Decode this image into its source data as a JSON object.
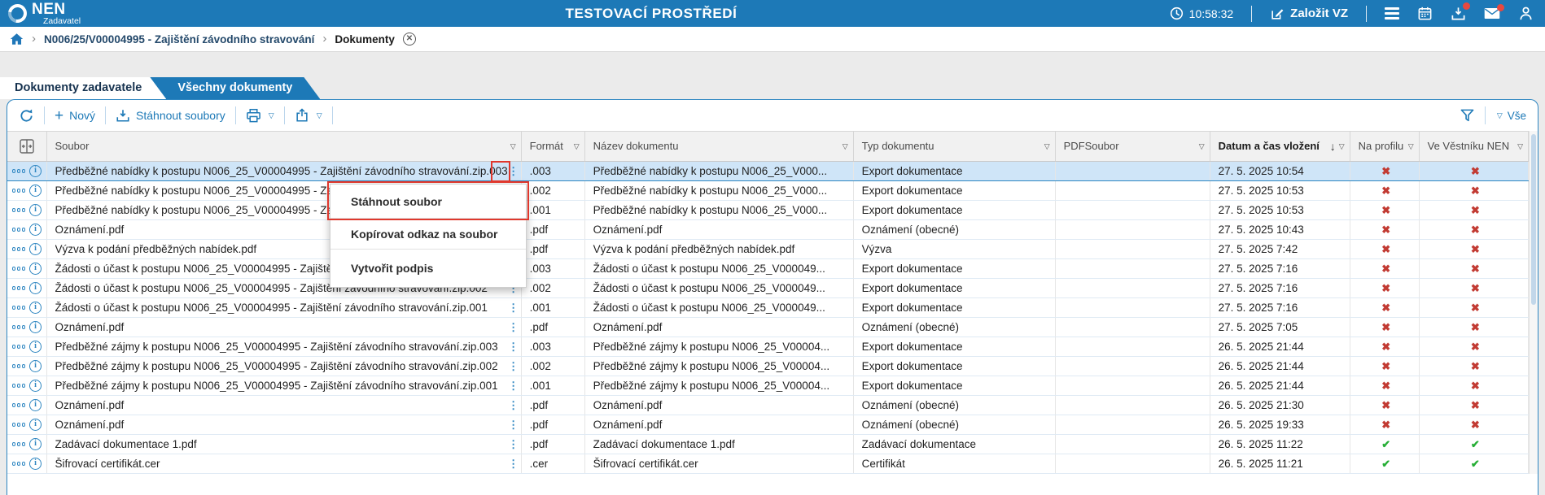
{
  "topbar": {
    "brand": "NEN",
    "brand_subtitle": "Zadavatel",
    "environment_title": "TESTOVACÍ PROSTŘEDÍ",
    "clock_time": "10:58:32",
    "create_vz_label": "Založit VZ",
    "notifications": {
      "downloads_badge": true,
      "mail_badge": true
    },
    "icon_names": [
      "clock-icon",
      "edit-icon",
      "hamburger-menu-icon",
      "calendar-icon",
      "download-tray-icon",
      "mail-icon",
      "user-icon"
    ]
  },
  "breadcrumb": {
    "items": [
      "N006/25/V00004995 - Zajištění závodního stravování",
      "Dokumenty"
    ],
    "icon_names": [
      "home-icon",
      "close-circle-icon"
    ]
  },
  "tabs": [
    {
      "label": "Dokumenty zadavatele",
      "active": false
    },
    {
      "label": "Všechny dokumenty",
      "active": true
    }
  ],
  "toolbar": {
    "new_label": "Nový",
    "download_files_label": "Stáhnout soubory",
    "all_label": "Vše",
    "icon_names": [
      "refresh-icon",
      "plus-icon",
      "download-icon",
      "printer-icon",
      "share-icon",
      "filter-funnel-icon",
      "dropdown-triangle-icon"
    ]
  },
  "context_menu": {
    "items": [
      "Stáhnout soubor",
      "Kopírovat odkaz na soubor",
      "Vytvořit podpis"
    ]
  },
  "table": {
    "columns": [
      {
        "label": "Soubor",
        "sorted": false
      },
      {
        "label": "Formát",
        "sorted": false
      },
      {
        "label": "Název dokumentu",
        "sorted": false
      },
      {
        "label": "Typ dokumentu",
        "sorted": false
      },
      {
        "label": "PDFSoubor",
        "sorted": false
      },
      {
        "label": "Datum a čas vložení",
        "sorted": true,
        "sort_direction": "desc"
      },
      {
        "label": "Na profilu",
        "sorted": false
      },
      {
        "label": "Ve Věstníku NEN",
        "sorted": false
      }
    ],
    "icon_names": [
      "column-chooser-icon",
      "filter-triangle-icon",
      "sort-desc-icon",
      "more-dots-icon",
      "info-icon",
      "kebab-menu-icon",
      "check-icon",
      "cross-icon"
    ],
    "rows": [
      {
        "selected": true,
        "soubor": "Předběžné nabídky k postupu N006_25_V00004995 - Zajištění závodního stravování.zip.003",
        "format": ".003",
        "nazev": "Předběžné nabídky k postupu N006_25_V000...",
        "typ": "Export dokumentace",
        "pdfsoubor": "",
        "datum": "27. 5. 2025 10:54",
        "na_profilu": false,
        "ve_vestniku": false
      },
      {
        "selected": false,
        "soubor": "Předběžné nabídky k postupu N006_25_V00004995 - Zajištění závodního stravování.zip.002",
        "format": ".002",
        "nazev": "Předběžné nabídky k postupu N006_25_V000...",
        "typ": "Export dokumentace",
        "pdfsoubor": "",
        "datum": "27. 5. 2025 10:53",
        "na_profilu": false,
        "ve_vestniku": false
      },
      {
        "selected": false,
        "soubor": "Předběžné nabídky k postupu N006_25_V00004995 - Zajištění závodního stravování.zip.001",
        "format": ".001",
        "nazev": "Předběžné nabídky k postupu N006_25_V000...",
        "typ": "Export dokumentace",
        "pdfsoubor": "",
        "datum": "27. 5. 2025 10:53",
        "na_profilu": false,
        "ve_vestniku": false
      },
      {
        "selected": false,
        "soubor": "Oznámení.pdf",
        "format": ".pdf",
        "nazev": "Oznámení.pdf",
        "typ": "Oznámení (obecné)",
        "pdfsoubor": "",
        "datum": "27. 5. 2025 10:43",
        "na_profilu": false,
        "ve_vestniku": false
      },
      {
        "selected": false,
        "soubor": "Výzva k podání předběžných nabídek.pdf",
        "format": ".pdf",
        "nazev": "Výzva k podání předběžných nabídek.pdf",
        "typ": "Výzva",
        "pdfsoubor": "",
        "datum": "27. 5. 2025 7:42",
        "na_profilu": false,
        "ve_vestniku": false
      },
      {
        "selected": false,
        "soubor": "Žádosti o účast k postupu N006_25_V00004995 - Zajištění závodního stravování.zip.003",
        "format": ".003",
        "nazev": "Žádosti o účast k postupu N006_25_V000049...",
        "typ": "Export dokumentace",
        "pdfsoubor": "",
        "datum": "27. 5. 2025 7:16",
        "na_profilu": false,
        "ve_vestniku": false
      },
      {
        "selected": false,
        "soubor": "Žádosti o účast k postupu N006_25_V00004995 - Zajištění závodního stravování.zip.002",
        "format": ".002",
        "nazev": "Žádosti o účast k postupu N006_25_V000049...",
        "typ": "Export dokumentace",
        "pdfsoubor": "",
        "datum": "27. 5. 2025 7:16",
        "na_profilu": false,
        "ve_vestniku": false
      },
      {
        "selected": false,
        "soubor": "Žádosti o účast k postupu N006_25_V00004995 - Zajištění závodního stravování.zip.001",
        "format": ".001",
        "nazev": "Žádosti o účast k postupu N006_25_V000049...",
        "typ": "Export dokumentace",
        "pdfsoubor": "",
        "datum": "27. 5. 2025 7:16",
        "na_profilu": false,
        "ve_vestniku": false
      },
      {
        "selected": false,
        "soubor": "Oznámení.pdf",
        "format": ".pdf",
        "nazev": "Oznámení.pdf",
        "typ": "Oznámení (obecné)",
        "pdfsoubor": "",
        "datum": "27. 5. 2025 7:05",
        "na_profilu": false,
        "ve_vestniku": false
      },
      {
        "selected": false,
        "soubor": "Předběžné zájmy k postupu N006_25_V00004995 - Zajištění závodního stravování.zip.003",
        "format": ".003",
        "nazev": "Předběžné zájmy k postupu N006_25_V00004...",
        "typ": "Export dokumentace",
        "pdfsoubor": "",
        "datum": "26. 5. 2025 21:44",
        "na_profilu": false,
        "ve_vestniku": false
      },
      {
        "selected": false,
        "soubor": "Předběžné zájmy k postupu N006_25_V00004995 - Zajištění závodního stravování.zip.002",
        "format": ".002",
        "nazev": "Předběžné zájmy k postupu N006_25_V00004...",
        "typ": "Export dokumentace",
        "pdfsoubor": "",
        "datum": "26. 5. 2025 21:44",
        "na_profilu": false,
        "ve_vestniku": false
      },
      {
        "selected": false,
        "soubor": "Předběžné zájmy k postupu N006_25_V00004995 - Zajištění závodního stravování.zip.001",
        "format": ".001",
        "nazev": "Předběžné zájmy k postupu N006_25_V00004...",
        "typ": "Export dokumentace",
        "pdfsoubor": "",
        "datum": "26. 5. 2025 21:44",
        "na_profilu": false,
        "ve_vestniku": false
      },
      {
        "selected": false,
        "soubor": "Oznámení.pdf",
        "format": ".pdf",
        "nazev": "Oznámení.pdf",
        "typ": "Oznámení (obecné)",
        "pdfsoubor": "",
        "datum": "26. 5. 2025 21:30",
        "na_profilu": false,
        "ve_vestniku": false
      },
      {
        "selected": false,
        "soubor": "Oznámení.pdf",
        "format": ".pdf",
        "nazev": "Oznámení.pdf",
        "typ": "Oznámení (obecné)",
        "pdfsoubor": "",
        "datum": "26. 5. 2025 19:33",
        "na_profilu": false,
        "ve_vestniku": false
      },
      {
        "selected": false,
        "soubor": "Zadávací dokumentace 1.pdf",
        "format": ".pdf",
        "nazev": "Zadávací dokumentace 1.pdf",
        "typ": "Zadávací dokumentace",
        "pdfsoubor": "",
        "datum": "26. 5. 2025 11:22",
        "na_profilu": true,
        "ve_vestniku": true
      },
      {
        "selected": false,
        "soubor": "Šifrovací certifikát.cer",
        "format": ".cer",
        "nazev": "Šifrovací certifikát.cer",
        "typ": "Certifikát",
        "pdfsoubor": "",
        "datum": "26. 5. 2025 11:21",
        "na_profilu": true,
        "ve_vestniku": true
      }
    ]
  },
  "colors": {
    "accent_blue": "#1d79b7",
    "selected_row": "#cfe5f8",
    "cross_red": "#c23b33",
    "check_green": "#27ae36",
    "annotation_red": "#e0382d",
    "badge_red": "#e8483f"
  }
}
